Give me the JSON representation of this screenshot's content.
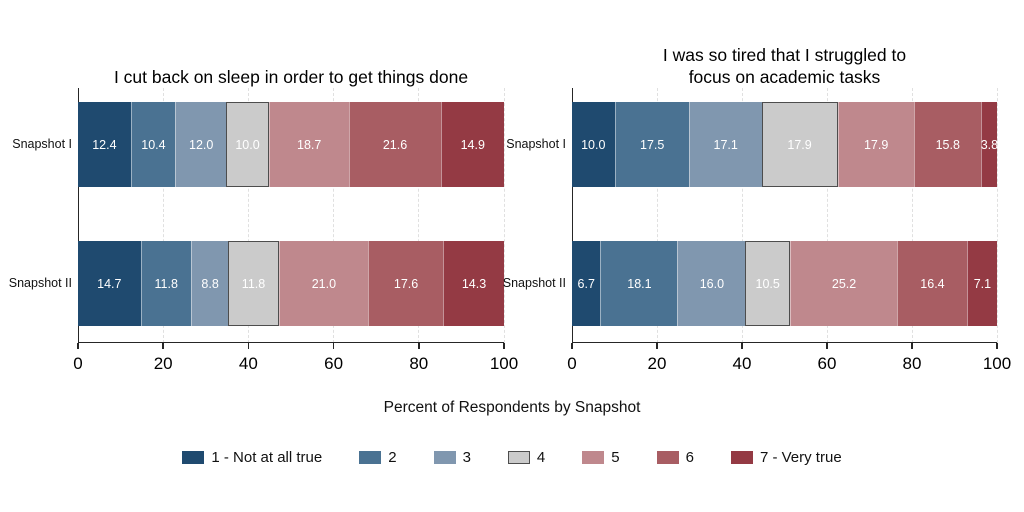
{
  "figure": {
    "background": "#ffffff",
    "xlabel": "Percent of Respondents by Snapshot"
  },
  "palette": {
    "axis_line": "#262626",
    "gridline": "#e0e0e0",
    "value_label": "#ffffff",
    "neutral_border": "#4d4d4d"
  },
  "legend": {
    "items": [
      {
        "label": "1 - Not at all true",
        "color": "#1f4a6f"
      },
      {
        "label": "2",
        "color": "#4a7292"
      },
      {
        "label": "3",
        "color": "#8097af"
      },
      {
        "label": "4",
        "color": "#cbcbcb",
        "border": "#4d4d4d"
      },
      {
        "label": "5",
        "color": "#bf888d"
      },
      {
        "label": "6",
        "color": "#a85d63"
      },
      {
        "label": "7 - Very true",
        "color": "#943a44"
      }
    ]
  },
  "chart_data": [
    {
      "type": "bar",
      "stacked": true,
      "orientation": "horizontal",
      "title_lines": [
        "I cut back on sleep in order to get things done"
      ],
      "categories": [
        "Snapshot I",
        "Snapshot II"
      ],
      "series": [
        {
          "name": "1 - Not at all true",
          "color": "#1f4a6f",
          "values": [
            12.4,
            14.7
          ]
        },
        {
          "name": "2",
          "color": "#4a7292",
          "values": [
            10.4,
            11.8
          ]
        },
        {
          "name": "3",
          "color": "#8097af",
          "values": [
            12.0,
            8.8
          ]
        },
        {
          "name": "4",
          "color": "#cbcbcb",
          "neutral": true,
          "values": [
            10.0,
            11.8
          ]
        },
        {
          "name": "5",
          "color": "#bf888d",
          "values": [
            18.7,
            21.0
          ]
        },
        {
          "name": "6",
          "color": "#a85d63",
          "values": [
            21.6,
            17.6
          ]
        },
        {
          "name": "7 - Very true",
          "color": "#943a44",
          "values": [
            14.9,
            14.3
          ]
        }
      ],
      "xlim": [
        0,
        100
      ],
      "xticks": [
        0,
        20,
        40,
        60,
        80,
        100
      ],
      "grid": "dashed-vertical",
      "value_labels": true
    },
    {
      "type": "bar",
      "stacked": true,
      "orientation": "horizontal",
      "title_lines": [
        "I was so tired that I struggled to",
        "focus on academic tasks"
      ],
      "categories": [
        "Snapshot I",
        "Snapshot II"
      ],
      "series": [
        {
          "name": "1 - Not at all true",
          "color": "#1f4a6f",
          "values": [
            10.0,
            6.7
          ]
        },
        {
          "name": "2",
          "color": "#4a7292",
          "values": [
            17.5,
            18.1
          ]
        },
        {
          "name": "3",
          "color": "#8097af",
          "values": [
            17.1,
            16.0
          ]
        },
        {
          "name": "4",
          "color": "#cbcbcb",
          "neutral": true,
          "values": [
            17.9,
            10.5
          ]
        },
        {
          "name": "5",
          "color": "#bf888d",
          "values": [
            17.9,
            25.2
          ]
        },
        {
          "name": "6",
          "color": "#a85d63",
          "values": [
            15.8,
            16.4
          ]
        },
        {
          "name": "7 - Very true",
          "color": "#943a44",
          "values": [
            3.8,
            7.1
          ]
        }
      ],
      "xlim": [
        0,
        100
      ],
      "xticks": [
        0,
        20,
        40,
        60,
        80,
        100
      ],
      "grid": "dashed-vertical",
      "value_labels": true
    }
  ]
}
